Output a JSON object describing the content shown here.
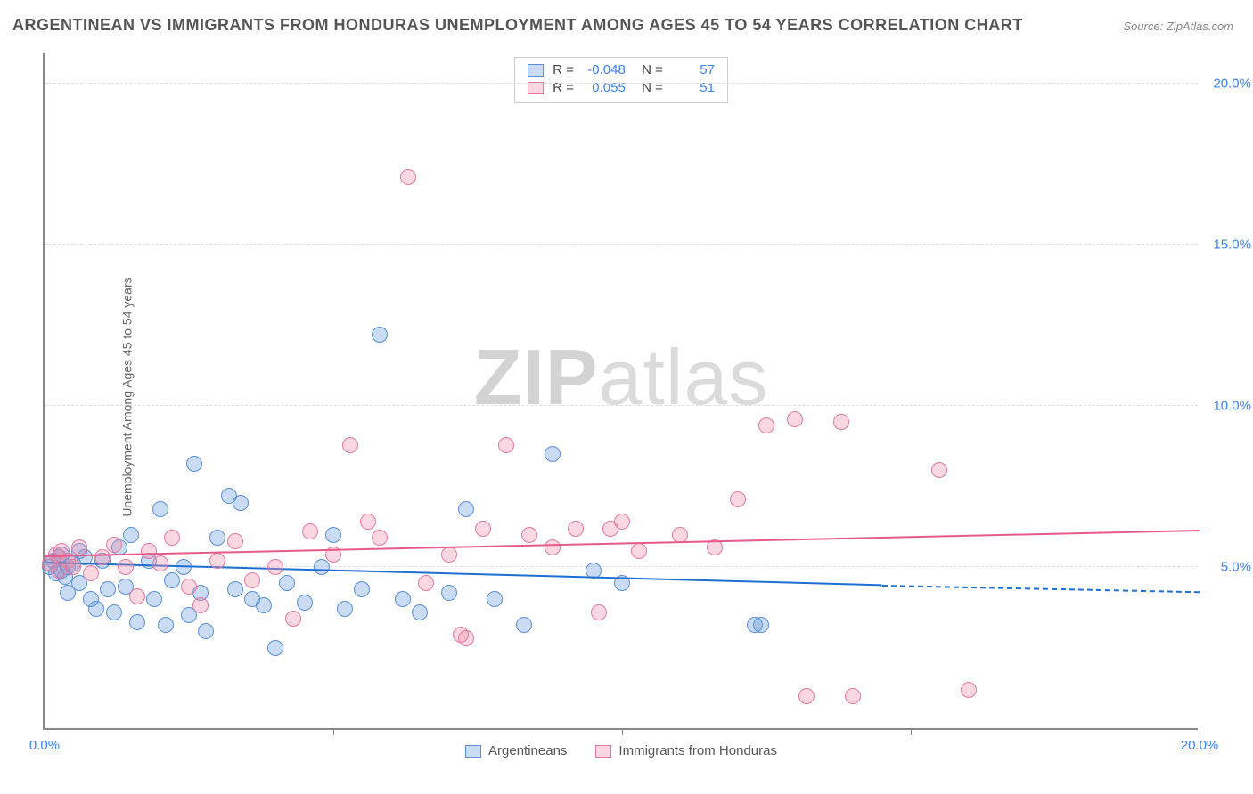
{
  "title": "ARGENTINEAN VS IMMIGRANTS FROM HONDURAS UNEMPLOYMENT AMONG AGES 45 TO 54 YEARS CORRELATION CHART",
  "source": "Source: ZipAtlas.com",
  "ylabel": "Unemployment Among Ages 45 to 54 years",
  "watermark_a": "ZIP",
  "watermark_b": "atlas",
  "chart": {
    "type": "scatter",
    "xlim": [
      0,
      20
    ],
    "ylim": [
      0,
      21
    ],
    "xtick_step": 5,
    "ytick_step": 5,
    "xtick_labels": [
      "0.0%",
      "",
      "",
      "",
      "20.0%"
    ],
    "ytick_labels": [
      "",
      "5.0%",
      "10.0%",
      "15.0%",
      "20.0%"
    ],
    "grid_color": "#dddddd",
    "axis_color": "#888888",
    "tick_label_color": "#3b82f6",
    "background_color": "#ffffff",
    "marker_radius": 9,
    "marker_border_width": 1,
    "series": [
      {
        "name": "Argentineans",
        "fill": "rgba(99, 155, 221, 0.35)",
        "stroke": "#5a8fd6",
        "trend_color": "#1d6fd1",
        "R": "-0.048",
        "N": "57",
        "trend": {
          "x0": 0,
          "y0": 5.1,
          "x1": 14.5,
          "y1": 4.4,
          "dash_x1": 20,
          "dash_y1": 4.2
        },
        "points": [
          [
            0.1,
            5.0
          ],
          [
            0.15,
            5.2
          ],
          [
            0.2,
            4.8
          ],
          [
            0.25,
            5.3
          ],
          [
            0.3,
            4.9
          ],
          [
            0.3,
            5.4
          ],
          [
            0.35,
            4.7
          ],
          [
            0.4,
            5.0
          ],
          [
            0.4,
            4.2
          ],
          [
            0.5,
            5.1
          ],
          [
            0.6,
            5.5
          ],
          [
            0.6,
            4.5
          ],
          [
            0.7,
            5.3
          ],
          [
            0.8,
            4.0
          ],
          [
            0.9,
            3.7
          ],
          [
            1.0,
            5.2
          ],
          [
            1.1,
            4.3
          ],
          [
            1.2,
            3.6
          ],
          [
            1.3,
            5.6
          ],
          [
            1.4,
            4.4
          ],
          [
            1.5,
            6.0
          ],
          [
            1.6,
            3.3
          ],
          [
            1.8,
            5.2
          ],
          [
            1.9,
            4.0
          ],
          [
            2.0,
            6.8
          ],
          [
            2.1,
            3.2
          ],
          [
            2.2,
            4.6
          ],
          [
            2.4,
            5.0
          ],
          [
            2.5,
            3.5
          ],
          [
            2.6,
            8.2
          ],
          [
            2.7,
            4.2
          ],
          [
            2.8,
            3.0
          ],
          [
            3.0,
            5.9
          ],
          [
            3.2,
            7.2
          ],
          [
            3.3,
            4.3
          ],
          [
            3.4,
            7.0
          ],
          [
            3.6,
            4.0
          ],
          [
            3.8,
            3.8
          ],
          [
            4.0,
            2.5
          ],
          [
            4.2,
            4.5
          ],
          [
            4.5,
            3.9
          ],
          [
            4.8,
            5.0
          ],
          [
            5.0,
            6.0
          ],
          [
            5.2,
            3.7
          ],
          [
            5.5,
            4.3
          ],
          [
            5.8,
            12.2
          ],
          [
            6.2,
            4.0
          ],
          [
            6.5,
            3.6
          ],
          [
            7.0,
            4.2
          ],
          [
            7.3,
            6.8
          ],
          [
            7.8,
            4.0
          ],
          [
            8.3,
            3.2
          ],
          [
            8.8,
            8.5
          ],
          [
            12.3,
            3.2
          ],
          [
            12.4,
            3.2
          ],
          [
            9.5,
            4.9
          ],
          [
            10.0,
            4.5
          ]
        ]
      },
      {
        "name": "Immigrants from Honduras",
        "fill": "rgba(240, 140, 170, 0.35)",
        "stroke": "#e07ba0",
        "trend_color": "#e65a8a",
        "R": "0.055",
        "N": "51",
        "trend": {
          "x0": 0,
          "y0": 5.3,
          "x1": 20,
          "y1": 6.1
        },
        "points": [
          [
            0.1,
            5.1
          ],
          [
            0.2,
            5.4
          ],
          [
            0.25,
            4.9
          ],
          [
            0.3,
            5.5
          ],
          [
            0.4,
            5.2
          ],
          [
            0.5,
            5.0
          ],
          [
            0.6,
            5.6
          ],
          [
            0.8,
            4.8
          ],
          [
            1.0,
            5.3
          ],
          [
            1.2,
            5.7
          ],
          [
            1.4,
            5.0
          ],
          [
            1.6,
            4.1
          ],
          [
            1.8,
            5.5
          ],
          [
            2.0,
            5.1
          ],
          [
            2.2,
            5.9
          ],
          [
            2.5,
            4.4
          ],
          [
            2.7,
            3.8
          ],
          [
            3.0,
            5.2
          ],
          [
            3.3,
            5.8
          ],
          [
            3.6,
            4.6
          ],
          [
            4.0,
            5.0
          ],
          [
            4.3,
            3.4
          ],
          [
            4.6,
            6.1
          ],
          [
            5.0,
            5.4
          ],
          [
            5.3,
            8.8
          ],
          [
            5.6,
            6.4
          ],
          [
            5.8,
            5.9
          ],
          [
            6.3,
            17.1
          ],
          [
            6.6,
            4.5
          ],
          [
            7.0,
            5.4
          ],
          [
            7.3,
            2.8
          ],
          [
            7.6,
            6.2
          ],
          [
            8.0,
            8.8
          ],
          [
            8.4,
            6.0
          ],
          [
            8.8,
            5.6
          ],
          [
            9.2,
            6.2
          ],
          [
            9.6,
            3.6
          ],
          [
            9.8,
            6.2
          ],
          [
            10.3,
            5.5
          ],
          [
            11.0,
            6.0
          ],
          [
            11.6,
            5.6
          ],
          [
            12.0,
            7.1
          ],
          [
            12.5,
            9.4
          ],
          [
            13.0,
            9.6
          ],
          [
            13.2,
            1.0
          ],
          [
            13.8,
            9.5
          ],
          [
            14.0,
            1.0
          ],
          [
            15.5,
            8.0
          ],
          [
            16.0,
            1.2
          ],
          [
            10.0,
            6.4
          ],
          [
            7.2,
            2.9
          ]
        ]
      }
    ],
    "legend_labels": [
      "Argentineans",
      "Immigrants from Honduras"
    ]
  }
}
